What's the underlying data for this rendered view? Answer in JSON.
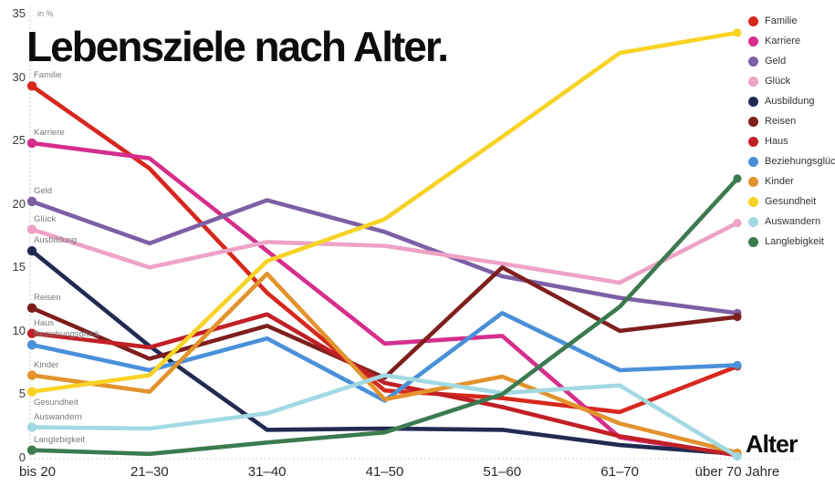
{
  "title": "Lebensziele nach Alter.",
  "unit_label": "in %",
  "x_axis_label": "Alter",
  "chart_data": {
    "type": "line",
    "title": "Lebensziele nach Alter.",
    "ylabel": "in %",
    "xlabel": "Alter",
    "ylim": [
      0,
      35
    ],
    "y_ticks": [
      0,
      5,
      10,
      15,
      20,
      25,
      30,
      35
    ],
    "grid": false,
    "legend_position": "right",
    "axis_style": "dotted",
    "categories": [
      "bis 20",
      "21–30",
      "31–40",
      "41–50",
      "51–60",
      "61–70",
      "über 70 Jahre"
    ],
    "series": [
      {
        "name": "Familie",
        "color": "#d7281e",
        "values": [
          29.3,
          22.8,
          13.0,
          5.3,
          4.7,
          3.6,
          7.2
        ]
      },
      {
        "name": "Karriere",
        "color": "#d62e8c",
        "values": [
          24.8,
          23.6,
          16.3,
          9.0,
          9.6,
          1.6,
          0.2
        ]
      },
      {
        "name": "Geld",
        "color": "#7c5fa5",
        "values": [
          20.2,
          16.9,
          20.3,
          17.8,
          14.3,
          12.6,
          11.4
        ]
      },
      {
        "name": "Glück",
        "color": "#eda3c6",
        "values": [
          18.0,
          15.0,
          17.0,
          16.7,
          15.3,
          13.8,
          18.5
        ]
      },
      {
        "name": "Ausbildung",
        "color": "#232a52",
        "values": [
          16.3,
          8.8,
          2.2,
          2.3,
          2.2,
          1.0,
          0.3
        ]
      },
      {
        "name": "Reisen",
        "color": "#7e1f1d",
        "values": [
          11.8,
          7.8,
          10.4,
          6.3,
          15.0,
          10.0,
          11.1
        ]
      },
      {
        "name": "Haus",
        "color": "#c02026",
        "values": [
          9.8,
          8.7,
          11.3,
          5.9,
          4.0,
          1.7,
          0.2
        ]
      },
      {
        "name": "Beziehungsglück",
        "color": "#4a90d9",
        "values": [
          8.9,
          6.9,
          9.4,
          4.5,
          11.4,
          6.9,
          7.3
        ]
      },
      {
        "name": "Kinder",
        "color": "#e2932d",
        "values": [
          6.5,
          5.2,
          14.5,
          4.6,
          6.4,
          2.7,
          0.4
        ]
      },
      {
        "name": "Gesundheit",
        "color": "#f7d325",
        "values": [
          5.2,
          6.5,
          15.5,
          18.8,
          25.3,
          31.9,
          33.5
        ],
        "label_below": true
      },
      {
        "name": "Auswandern",
        "color": "#a2d9e2",
        "values": [
          2.4,
          2.3,
          3.5,
          6.5,
          5.1,
          5.7,
          0.1
        ]
      },
      {
        "name": "Langlebigkeit",
        "color": "#3c7a50",
        "values": [
          0.6,
          0.3,
          1.2,
          2.0,
          5.0,
          11.9,
          22.0
        ]
      }
    ]
  }
}
